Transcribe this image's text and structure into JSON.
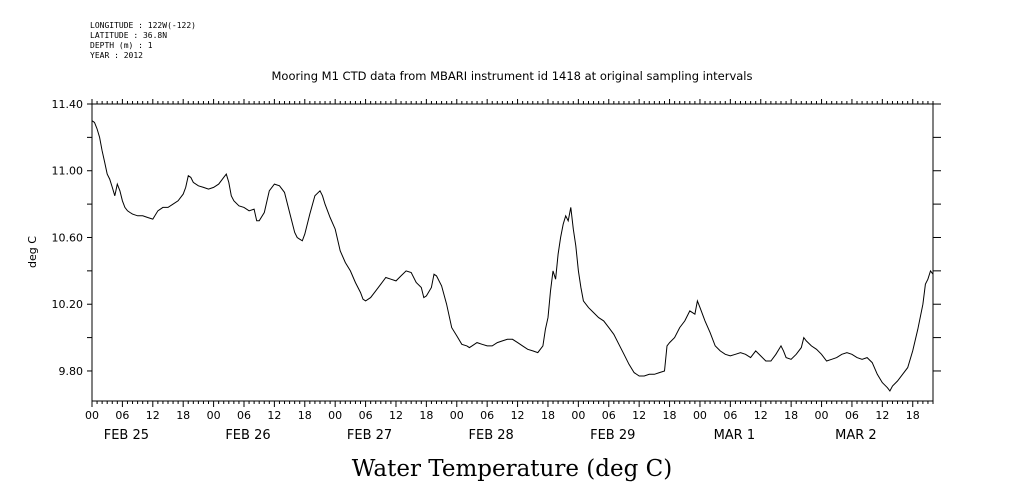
{
  "header": {
    "longitude": "LONGITUDE : 122W(-122)",
    "latitude": "LATITUDE : 36.8N",
    "depth": "DEPTH (m) : 1",
    "year": "YEAR : 2012"
  },
  "chart_data": {
    "type": "line",
    "title": "Mooring M1 CTD data from MBARI instrument id 1418 at original sampling intervals",
    "xlabel": "Water Temperature (deg C)",
    "ylabel": "deg C",
    "ylim": [
      9.62,
      11.4
    ],
    "yticks": [
      "11.40",
      "11.00",
      "10.60",
      "10.20",
      "9.80"
    ],
    "hour_ticks": [
      "00",
      "06",
      "12",
      "18",
      "00",
      "06",
      "12",
      "18",
      "00",
      "06",
      "12",
      "18",
      "00",
      "06",
      "12",
      "18",
      "00",
      "06",
      "12",
      "18",
      "00",
      "06",
      "12",
      "18",
      "00",
      "06",
      "12",
      "18"
    ],
    "day_labels": [
      "FEB 25",
      "FEB 26",
      "FEB 27",
      "FEB 28",
      "FEB 29",
      "MAR  1",
      "MAR  2"
    ],
    "x_unit": "hours since 2012-02-25 00:00",
    "xlim": [
      0,
      166
    ],
    "grid": false,
    "series": [
      {
        "points": [
          [
            0,
            11.3
          ],
          [
            0.5,
            11.29
          ],
          [
            1,
            11.25
          ],
          [
            1.5,
            11.2
          ],
          [
            2,
            11.12
          ],
          [
            2.5,
            11.05
          ],
          [
            3,
            10.98
          ],
          [
            3.5,
            10.95
          ],
          [
            4,
            10.9
          ],
          [
            4.5,
            10.85
          ],
          [
            5,
            10.92
          ],
          [
            5.5,
            10.88
          ],
          [
            6,
            10.82
          ],
          [
            6.5,
            10.78
          ],
          [
            7,
            10.76
          ],
          [
            7.5,
            10.75
          ],
          [
            8,
            10.74
          ],
          [
            9,
            10.73
          ],
          [
            10,
            10.73
          ],
          [
            11,
            10.72
          ],
          [
            12,
            10.71
          ],
          [
            13,
            10.76
          ],
          [
            14,
            10.78
          ],
          [
            15,
            10.78
          ],
          [
            16,
            10.8
          ],
          [
            17,
            10.82
          ],
          [
            18,
            10.86
          ],
          [
            18.5,
            10.9
          ],
          [
            19,
            10.97
          ],
          [
            19.5,
            10.96
          ],
          [
            20,
            10.93
          ],
          [
            21,
            10.91
          ],
          [
            22,
            10.9
          ],
          [
            23,
            10.89
          ],
          [
            24,
            10.9
          ],
          [
            25,
            10.92
          ],
          [
            26,
            10.96
          ],
          [
            26.5,
            10.98
          ],
          [
            27,
            10.93
          ],
          [
            27.5,
            10.85
          ],
          [
            28,
            10.82
          ],
          [
            29,
            10.79
          ],
          [
            30,
            10.78
          ],
          [
            31,
            10.76
          ],
          [
            32,
            10.77
          ],
          [
            32.5,
            10.7
          ],
          [
            33,
            10.7
          ],
          [
            34,
            10.75
          ],
          [
            35,
            10.88
          ],
          [
            36,
            10.92
          ],
          [
            37,
            10.91
          ],
          [
            38,
            10.87
          ],
          [
            39,
            10.75
          ],
          [
            40,
            10.63
          ],
          [
            40.5,
            10.6
          ],
          [
            41,
            10.59
          ],
          [
            41.5,
            10.58
          ],
          [
            42,
            10.62
          ],
          [
            43,
            10.74
          ],
          [
            44,
            10.85
          ],
          [
            45,
            10.88
          ],
          [
            45.5,
            10.85
          ],
          [
            46,
            10.8
          ],
          [
            47,
            10.72
          ],
          [
            48,
            10.65
          ],
          [
            49,
            10.52
          ],
          [
            50,
            10.45
          ],
          [
            51,
            10.4
          ],
          [
            52,
            10.33
          ],
          [
            53,
            10.27
          ],
          [
            53.5,
            10.23
          ],
          [
            54,
            10.22
          ],
          [
            55,
            10.24
          ],
          [
            56,
            10.28
          ],
          [
            57,
            10.32
          ],
          [
            58,
            10.36
          ],
          [
            59,
            10.35
          ],
          [
            60,
            10.34
          ],
          [
            61,
            10.37
          ],
          [
            62,
            10.4
          ],
          [
            63,
            10.39
          ],
          [
            64,
            10.33
          ],
          [
            65,
            10.3
          ],
          [
            65.5,
            10.24
          ],
          [
            66,
            10.25
          ],
          [
            67,
            10.3
          ],
          [
            67.5,
            10.38
          ],
          [
            68,
            10.37
          ],
          [
            69,
            10.31
          ],
          [
            70,
            10.2
          ],
          [
            71,
            10.06
          ],
          [
            72,
            10.01
          ],
          [
            73,
            9.96
          ],
          [
            74,
            9.95
          ],
          [
            74.5,
            9.94
          ],
          [
            75,
            9.95
          ],
          [
            76,
            9.97
          ],
          [
            77,
            9.96
          ],
          [
            78,
            9.95
          ],
          [
            79,
            9.95
          ],
          [
            80,
            9.97
          ],
          [
            81,
            9.98
          ],
          [
            82,
            9.99
          ],
          [
            83,
            9.99
          ],
          [
            84,
            9.97
          ],
          [
            85,
            9.95
          ],
          [
            86,
            9.93
          ],
          [
            87,
            9.92
          ],
          [
            88,
            9.91
          ],
          [
            89,
            9.95
          ],
          [
            89.5,
            10.05
          ],
          [
            90,
            10.12
          ],
          [
            90.5,
            10.28
          ],
          [
            91,
            10.4
          ],
          [
            91.5,
            10.35
          ],
          [
            92,
            10.5
          ],
          [
            92.5,
            10.6
          ],
          [
            93,
            10.68
          ],
          [
            93.5,
            10.73
          ],
          [
            94,
            10.7
          ],
          [
            94.5,
            10.78
          ],
          [
            95,
            10.65
          ],
          [
            95.5,
            10.55
          ],
          [
            96,
            10.4
          ],
          [
            96.5,
            10.3
          ],
          [
            97,
            10.22
          ],
          [
            98,
            10.18
          ],
          [
            99,
            10.15
          ],
          [
            100,
            10.12
          ],
          [
            101,
            10.1
          ],
          [
            102,
            10.06
          ],
          [
            103,
            10.02
          ],
          [
            104,
            9.96
          ],
          [
            105,
            9.9
          ],
          [
            106,
            9.84
          ],
          [
            107,
            9.79
          ],
          [
            108,
            9.77
          ],
          [
            109,
            9.77
          ],
          [
            110,
            9.78
          ],
          [
            111,
            9.78
          ],
          [
            112,
            9.79
          ],
          [
            113,
            9.8
          ],
          [
            113.5,
            9.95
          ],
          [
            114,
            9.97
          ],
          [
            115,
            10.0
          ],
          [
            116,
            10.06
          ],
          [
            117,
            10.1
          ],
          [
            118,
            10.16
          ],
          [
            119,
            10.14
          ],
          [
            119.5,
            10.22
          ],
          [
            120,
            10.18
          ],
          [
            121,
            10.1
          ],
          [
            122,
            10.03
          ],
          [
            123,
            9.95
          ],
          [
            124,
            9.92
          ],
          [
            125,
            9.9
          ],
          [
            126,
            9.89
          ],
          [
            127,
            9.9
          ],
          [
            128,
            9.91
          ],
          [
            129,
            9.9
          ],
          [
            130,
            9.88
          ],
          [
            131,
            9.92
          ],
          [
            132,
            9.89
          ],
          [
            133,
            9.86
          ],
          [
            134,
            9.86
          ],
          [
            135,
            9.9
          ],
          [
            136,
            9.95
          ],
          [
            136.5,
            9.92
          ],
          [
            137,
            9.88
          ],
          [
            138,
            9.87
          ],
          [
            139,
            9.9
          ],
          [
            140,
            9.94
          ],
          [
            140.5,
            10.0
          ],
          [
            141,
            9.98
          ],
          [
            142,
            9.95
          ],
          [
            143,
            9.93
          ],
          [
            144,
            9.9
          ],
          [
            145,
            9.86
          ],
          [
            146,
            9.87
          ],
          [
            147,
            9.88
          ],
          [
            148,
            9.9
          ],
          [
            149,
            9.91
          ],
          [
            150,
            9.9
          ],
          [
            151,
            9.88
          ],
          [
            152,
            9.87
          ],
          [
            153,
            9.88
          ],
          [
            154,
            9.85
          ],
          [
            155,
            9.78
          ],
          [
            156,
            9.73
          ],
          [
            157,
            9.7
          ],
          [
            157.5,
            9.68
          ],
          [
            158,
            9.71
          ],
          [
            159,
            9.74
          ],
          [
            160,
            9.78
          ],
          [
            161,
            9.82
          ],
          [
            162,
            9.92
          ],
          [
            163,
            10.05
          ],
          [
            164,
            10.2
          ],
          [
            164.5,
            10.32
          ],
          [
            165,
            10.35
          ],
          [
            165.5,
            10.4
          ],
          [
            166,
            10.38
          ]
        ]
      }
    ]
  }
}
